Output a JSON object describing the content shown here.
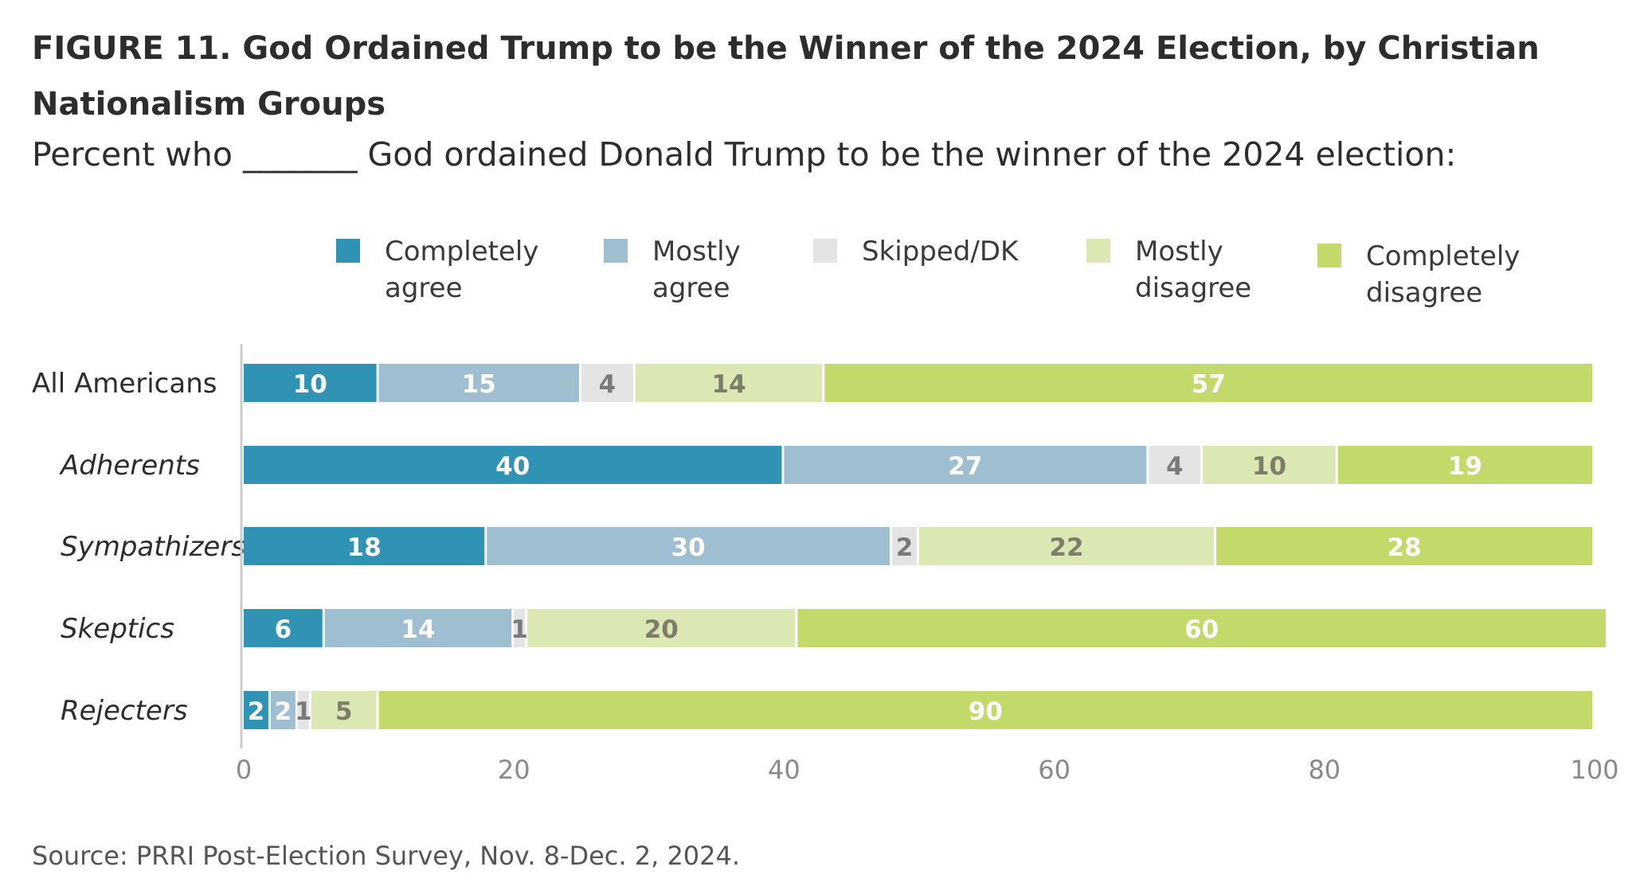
{
  "title": "FIGURE 11.  God Ordained Trump to be the Winner of the 2024 Election, by Christian Nationalism Groups",
  "subtitle": "Percent who _______ God ordained Donald Trump to be the winner of the 2024 election:",
  "source": "Source: PRRI Post-Election Survey, Nov. 8-Dec. 2, 2024.",
  "chart_data": {
    "type": "bar",
    "orientation": "horizontal",
    "stacked": true,
    "categories": [
      "All Americans",
      "Adherents",
      "Sympathizers",
      "Skeptics",
      "Rejecters"
    ],
    "category_italic": [
      false,
      true,
      true,
      true,
      true
    ],
    "series": [
      {
        "name": "Completely agree",
        "legend_lines": [
          "Completely",
          "agree"
        ],
        "color": "#3193b3",
        "label_color": "#ffffff",
        "values": [
          10,
          40,
          18,
          6,
          2
        ]
      },
      {
        "name": "Mostly agree",
        "legend_lines": [
          "Mostly",
          "agree"
        ],
        "color": "#9fbfd1",
        "label_color": "#ffffff",
        "values": [
          15,
          27,
          30,
          14,
          2
        ]
      },
      {
        "name": "Skipped/DK",
        "legend_lines": [
          "Skipped/DK"
        ],
        "color": "#e3e4e4",
        "label_color": "#7a7a7a",
        "values": [
          4,
          4,
          2,
          1,
          1
        ]
      },
      {
        "name": "Mostly disagree",
        "legend_lines": [
          "Mostly",
          "disagree"
        ],
        "color": "#dbe8b4",
        "label_color": "#7d7d6a",
        "values": [
          14,
          10,
          22,
          20,
          5
        ]
      },
      {
        "name": "Completely disagree",
        "legend_lines": [
          "Completely",
          "disagree"
        ],
        "color": "#c3da6b",
        "label_color": "#ffffff",
        "values": [
          57,
          19,
          28,
          60,
          90
        ]
      }
    ],
    "xlim": [
      0,
      100
    ],
    "xticks": [
      0,
      20,
      40,
      60,
      80,
      100
    ],
    "xlabel": "",
    "ylabel": "",
    "legend_position": "top",
    "grid": false
  }
}
